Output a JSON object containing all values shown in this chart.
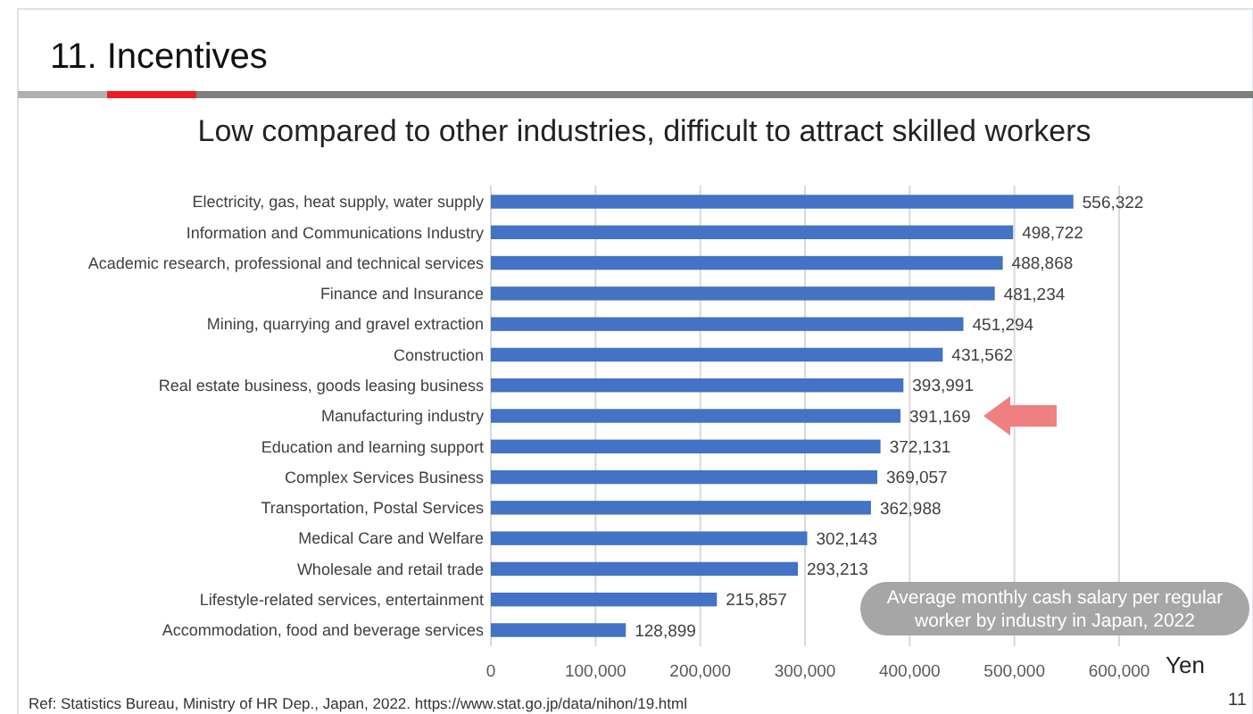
{
  "chart_data": {
    "type": "bar",
    "orientation": "horizontal",
    "title": "11. Incentives",
    "subtitle": "Low compared to other industries, difficult to attract skilled workers",
    "xlabel": "Yen",
    "categories": [
      "Electricity, gas, heat supply, water supply",
      "Information and Communications Industry",
      "Academic research, professional and technical services",
      "Finance and Insurance",
      "Mining, quarrying and gravel extraction",
      "Construction",
      "Real estate business, goods leasing business",
      "Manufacturing industry",
      "Education and learning support",
      "Complex Services Business",
      "Transportation, Postal Services",
      "Medical Care and Welfare",
      "Wholesale and retail trade",
      "Lifestyle-related services, entertainment",
      "Accommodation, food and beverage services"
    ],
    "values": [
      556322,
      498722,
      488868,
      481234,
      451294,
      431562,
      393991,
      391169,
      372131,
      369057,
      362988,
      302143,
      293213,
      215857,
      128899
    ],
    "color": "#4472c4",
    "data_labels": true,
    "value_labels": [
      "556,322",
      "498,722",
      "488,868",
      "481,234",
      "451,294",
      "431,562",
      "393,991",
      "391,169",
      "372,131",
      "369,057",
      "362,988",
      "302,143",
      "293,213",
      "215,857",
      "128,899"
    ],
    "xlim": [
      0,
      600000
    ],
    "xticks": [
      {
        "value": 0,
        "label": "0"
      },
      {
        "value": 100000,
        "label": "100,000"
      },
      {
        "value": 200000,
        "label": "200,000"
      },
      {
        "value": 300000,
        "label": "300,000"
      },
      {
        "value": 400000,
        "label": "400,000"
      },
      {
        "value": 500000,
        "label": "500,000"
      },
      {
        "value": 600000,
        "label": "600,000"
      }
    ],
    "grid": "x",
    "annotations": [
      "Average monthly cash salary per regular worker by industry in Japan, 2022",
      "Ref: Statistics Bureau, Ministry of HR Dep., Japan, 2022. https://www.stat.go.jp/data/nihon/19.html",
      "11"
    ]
  }
}
